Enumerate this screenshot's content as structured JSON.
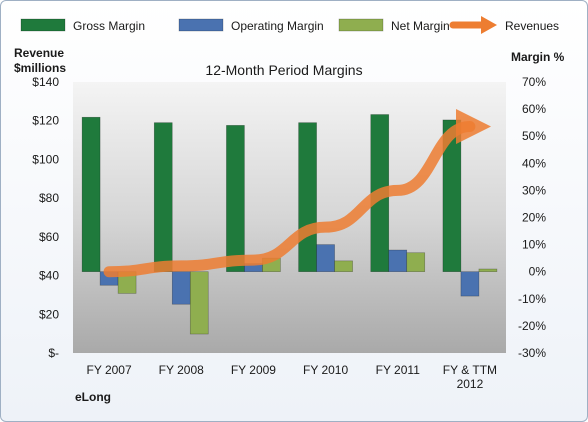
{
  "chart_data": {
    "type": "bar",
    "title": "12-Month Period Margins",
    "ylabel_left": [
      "Revenue",
      "$millions"
    ],
    "ylabel_right": "Margin %",
    "company": "eLong",
    "categories": [
      [
        "FY 2007"
      ],
      [
        "FY 2008"
      ],
      [
        "FY 2009"
      ],
      [
        "FY 2010"
      ],
      [
        "FY 2011"
      ],
      [
        "FY & TTM",
        "2012"
      ]
    ],
    "left_axis": {
      "range": [
        0,
        140
      ],
      "ticks": [
        "$-",
        "$20",
        "$40",
        "$60",
        "$80",
        "$100",
        "$120",
        "$140"
      ]
    },
    "right_axis": {
      "range": [
        -30,
        70
      ],
      "ticks": [
        "-30%",
        "-20%",
        "-10%",
        "0%",
        "10%",
        "20%",
        "30%",
        "40%",
        "50%",
        "60%",
        "70%"
      ]
    },
    "series": [
      {
        "name": "Gross Margin",
        "type": "bar",
        "axis": "right",
        "color": "#1f7a3c",
        "values": [
          57,
          55,
          54,
          55,
          58,
          56
        ]
      },
      {
        "name": "Operating Margin",
        "type": "bar",
        "axis": "right",
        "color": "#4a72b0",
        "values": [
          -5,
          -12,
          3,
          10,
          8,
          -9
        ]
      },
      {
        "name": "Net Margin",
        "type": "bar",
        "axis": "right",
        "color": "#8fae4f",
        "values": [
          -8,
          -23,
          5,
          4,
          7,
          1
        ]
      },
      {
        "name": "Revenues",
        "type": "line",
        "axis": "left",
        "color": "#ed7d31",
        "values": [
          42,
          45,
          48,
          65,
          84,
          117
        ]
      }
    ],
    "legend_position": "top",
    "grid": false
  }
}
